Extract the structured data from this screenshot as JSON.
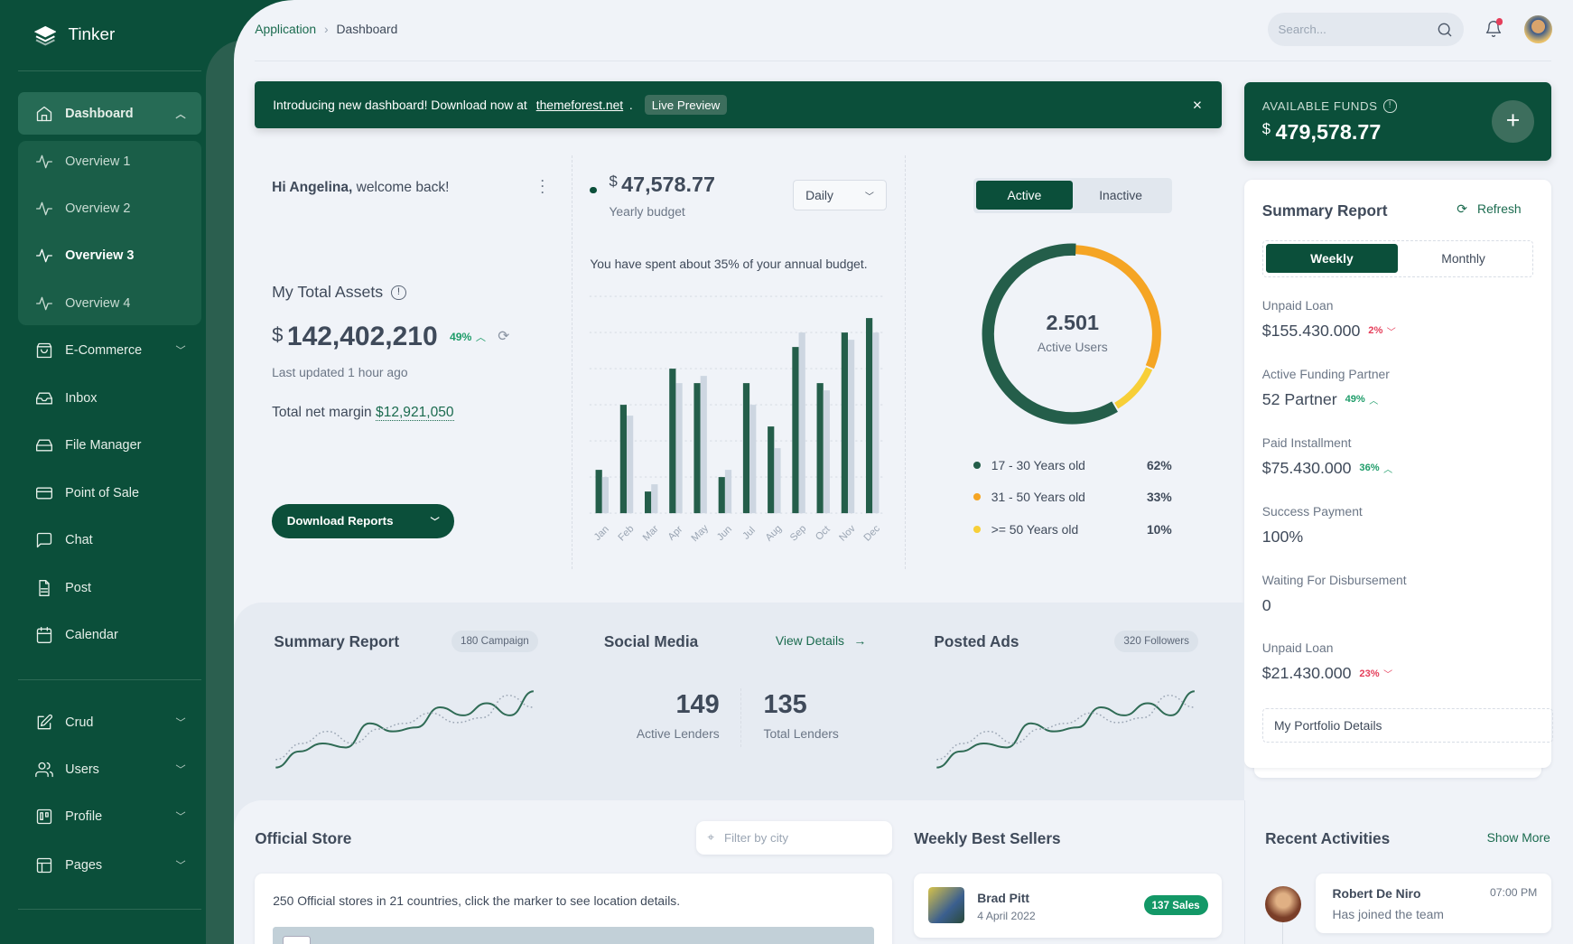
{
  "app": {
    "name": "Tinker"
  },
  "sidebar": {
    "items": [
      {
        "label": "Dashboard",
        "icon": "home-icon",
        "expanded": true
      },
      {
        "label": "Overview 1",
        "icon": "activity-icon"
      },
      {
        "label": "Overview 2",
        "icon": "activity-icon"
      },
      {
        "label": "Overview 3",
        "icon": "activity-icon",
        "current": true
      },
      {
        "label": "Overview 4",
        "icon": "activity-icon"
      },
      {
        "label": "E-Commerce",
        "icon": "shopping-bag-icon"
      },
      {
        "label": "Inbox",
        "icon": "inbox-icon"
      },
      {
        "label": "File Manager",
        "icon": "hard-drive-icon"
      },
      {
        "label": "Point of Sale",
        "icon": "credit-card-icon"
      },
      {
        "label": "Chat",
        "icon": "message-square-icon"
      },
      {
        "label": "Post",
        "icon": "file-text-icon"
      },
      {
        "label": "Calendar",
        "icon": "calendar-icon"
      },
      {
        "label": "Crud",
        "icon": "edit-icon"
      },
      {
        "label": "Users",
        "icon": "users-icon"
      },
      {
        "label": "Profile",
        "icon": "trello-icon"
      },
      {
        "label": "Pages",
        "icon": "layout-icon"
      }
    ]
  },
  "header": {
    "breadcrumb": [
      "Application",
      "Dashboard"
    ],
    "search_placeholder": "Search..."
  },
  "banner": {
    "text": "Introducing new dashboard! Download now at",
    "link": "themeforest.net",
    "suffix": ".",
    "button": "Live Preview"
  },
  "welcome": {
    "greeting_name": "Hi Angelina,",
    "greeting_rest": " welcome back!",
    "assets_title": "My Total Assets",
    "currency": "$",
    "assets_value": "142,402,210",
    "assets_change": "49%",
    "updated": "Last updated 1 hour ago",
    "margin_label": "Total net margin",
    "margin_value": "$12,921,050",
    "download_button": "Download Reports"
  },
  "budget": {
    "currency": "$",
    "value": "47,578.77",
    "label": "Yearly budget",
    "period": "Daily",
    "note": "You have spent about 35% of your annual budget."
  },
  "users": {
    "tabs": [
      "Active",
      "Inactive"
    ],
    "active_tab": "Active",
    "total": "2.501",
    "total_label": "Active Users",
    "legend": [
      {
        "label": "17 - 30 Years old",
        "pct": "62%",
        "value": 62,
        "color": "#245e4a"
      },
      {
        "label": "31 - 50 Years old",
        "pct": "33%",
        "value": 33,
        "color": "#f5a524"
      },
      {
        "label": ">= 50 Years old",
        "pct": "10%",
        "value": 10,
        "color": "#f7cf38"
      }
    ]
  },
  "funds": {
    "label": "AVAILABLE FUNDS",
    "currency": "$",
    "value": "479,578.77"
  },
  "summary": {
    "title": "Summary Report",
    "refresh": "Refresh",
    "tabs": [
      "Weekly",
      "Monthly"
    ],
    "active_tab": "Weekly",
    "items": [
      {
        "label": "Unpaid Loan",
        "value": "$155.430.000",
        "change": "2%",
        "dir": "down"
      },
      {
        "label": "Active Funding Partner",
        "value": "52 Partner",
        "change": "49%",
        "dir": "up"
      },
      {
        "label": "Paid Installment",
        "value": "$75.430.000",
        "change": "36%",
        "dir": "up"
      },
      {
        "label": "Success Payment",
        "value": "100%"
      },
      {
        "label": "Waiting For Disbursement",
        "value": "0"
      },
      {
        "label": "Unpaid Loan",
        "value": "$21.430.000",
        "change": "23%",
        "dir": "down"
      }
    ],
    "portfolio": "My Portfolio Details"
  },
  "band": {
    "summary_title": "Summary Report",
    "summary_badge": "180 Campaign",
    "social_title": "Social Media",
    "view_details": "View Details",
    "active_lenders": "149",
    "active_lenders_label": "Active Lenders",
    "total_lenders": "135",
    "total_lenders_label": "Total Lenders",
    "ads_title": "Posted Ads",
    "ads_badge": "320 Followers"
  },
  "store": {
    "title": "Official Store",
    "filter_placeholder": "Filter by city",
    "info": "250 Official stores in 21 countries, click the marker to see location details."
  },
  "sellers": {
    "title": "Weekly Best Sellers",
    "items": [
      {
        "name": "Brad Pitt",
        "date": "4 April 2022",
        "badge": "137 Sales"
      }
    ]
  },
  "activities": {
    "title": "Recent Activities",
    "show_more": "Show More",
    "items": [
      {
        "name": "Robert De Niro",
        "time": "07:00 PM",
        "text": "Has joined the team"
      }
    ]
  },
  "chart_data": [
    {
      "type": "bar",
      "categories": [
        "Jan",
        "Feb",
        "Mar",
        "Apr",
        "May",
        "Jun",
        "Jul",
        "Aug",
        "Sep",
        "Oct",
        "Nov",
        "Dec"
      ],
      "series": [
        {
          "values": [
            1.2,
            3.0,
            0.6,
            4.0,
            3.6,
            1.0,
            3.6,
            2.4,
            4.6,
            3.6,
            5.0,
            5.4
          ],
          "color": "#245e4a"
        },
        {
          "values": [
            1.0,
            2.7,
            0.8,
            3.6,
            3.8,
            1.2,
            3.0,
            1.8,
            5.0,
            3.4,
            4.8,
            5.0
          ],
          "color": "#cdd6e1"
        }
      ],
      "ylim": [
        0,
        6
      ],
      "grid": true
    },
    {
      "type": "pie",
      "donut": true,
      "values": [
        62,
        33,
        10
      ]
    },
    {
      "type": "line",
      "series": [
        {
          "values": [
            0,
            2,
            3,
            2.5,
            5.5,
            4.5,
            5,
            7.5,
            6.5,
            8,
            6.5,
            9.5
          ],
          "style": "solid"
        },
        {
          "values": [
            1,
            3,
            4.5,
            3,
            4.8,
            5.5,
            6.8,
            5.6,
            6.2,
            9,
            7.5
          ],
          "style": "dotted"
        }
      ]
    }
  ]
}
